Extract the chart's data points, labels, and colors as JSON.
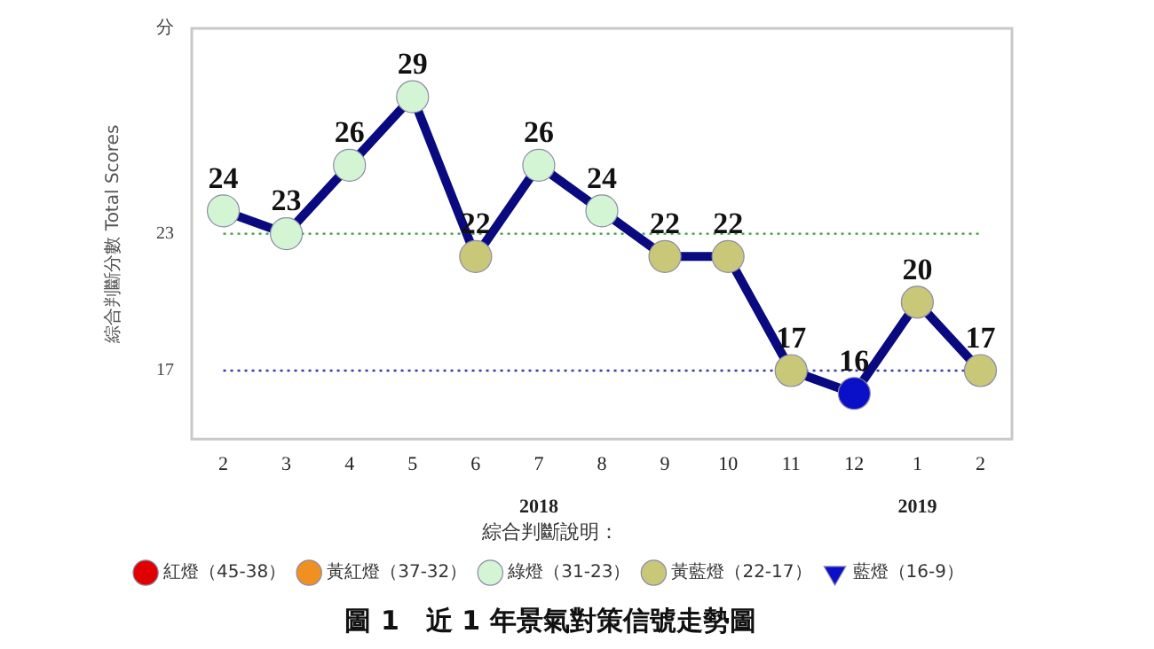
{
  "chart_data": {
    "type": "line",
    "title": "圖 1　近 1 年景氣對策信號走勢圖",
    "ylabel": "綜合判斷分數 Total Scores",
    "legend_title": "綜合判斷說明：",
    "legend": "bottom",
    "categories": [
      "2",
      "3",
      "4",
      "5",
      "6",
      "7",
      "8",
      "9",
      "10",
      "11",
      "12",
      "1",
      "2"
    ],
    "ylim": [
      14,
      32
    ],
    "yticks": [
      17,
      23,
      {
        "value": 32,
        "label": "分"
      }
    ],
    "grid": false,
    "data_labels": true,
    "line_style": "solid",
    "marker": "circle",
    "ref_lines": [
      {
        "axis": "y",
        "value": 23,
        "color": "#3a9a3a",
        "line_style": "dotted"
      },
      {
        "axis": "y",
        "value": 17,
        "color": "#3a3aaa",
        "line_style": "dotted"
      }
    ],
    "annotations": [
      "2018",
      "2019"
    ],
    "series": [
      {
        "type": "line",
        "color": "#0a0a80",
        "colors": [
          "#d4f5d4",
          "#d4f5d4",
          "#d4f5d4",
          "#d4f5d4",
          "#c8c878",
          "#d4f5d4",
          "#d4f5d4",
          "#c8c878",
          "#c8c878",
          "#c8c878",
          "#0a10c8",
          "#c8c878",
          "#c8c878"
        ],
        "values": [
          24,
          23,
          26,
          29,
          22,
          26,
          24,
          22,
          22,
          17,
          16,
          20,
          17
        ]
      },
      {
        "type": "scatter",
        "name": "紅燈（45-38）",
        "color": "#e00000",
        "marker": "circle",
        "values": [
          null,
          null,
          null,
          null,
          null,
          null,
          null,
          null,
          null,
          null,
          null,
          null,
          null
        ]
      },
      {
        "type": "scatter",
        "name": "黃紅燈（37-32）",
        "color": "#f09020",
        "marker": "circle",
        "values": [
          null,
          null,
          null,
          null,
          null,
          null,
          null,
          null,
          null,
          null,
          null,
          null,
          null
        ]
      },
      {
        "type": "scatter",
        "name": "綠燈（31-23）",
        "color": "#d4f5d4",
        "marker": "circle",
        "values": [
          null,
          null,
          null,
          null,
          null,
          null,
          null,
          null,
          null,
          null,
          null,
          null,
          null
        ]
      },
      {
        "type": "scatter",
        "name": "黃藍燈（22-17）",
        "color": "#c8c878",
        "marker": "circle",
        "values": [
          null,
          null,
          null,
          null,
          null,
          null,
          null,
          null,
          null,
          null,
          null,
          null,
          null
        ]
      },
      {
        "type": "scatter",
        "name": "藍燈（16-9）",
        "color": "#0a10c8",
        "marker": "triangle",
        "values": [
          null,
          null,
          null,
          null,
          null,
          null,
          null,
          null,
          null,
          null,
          null,
          null,
          null
        ]
      }
    ]
  }
}
